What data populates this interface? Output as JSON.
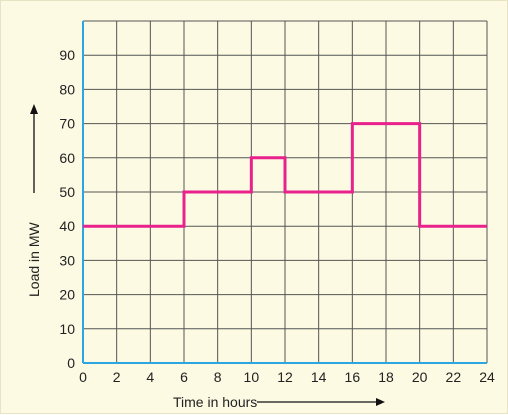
{
  "chart_data": {
    "type": "line",
    "step": true,
    "xlabel": "Time in hours",
    "ylabel": "Load in MW",
    "xlim": [
      0,
      24
    ],
    "ylim": [
      0,
      100
    ],
    "x_ticks": [
      0,
      2,
      4,
      6,
      8,
      10,
      12,
      14,
      16,
      18,
      20,
      22,
      24
    ],
    "y_ticks": [
      0,
      10,
      20,
      30,
      40,
      50,
      60,
      70,
      80,
      90
    ],
    "grid": true,
    "series": [
      {
        "x": [
          0,
          6,
          6,
          10,
          10,
          12,
          12,
          16,
          16,
          20,
          20,
          24
        ],
        "y": [
          40,
          40,
          50,
          50,
          60,
          60,
          50,
          50,
          70,
          70,
          40,
          40
        ]
      }
    ],
    "colors": {
      "line": "#e8218c",
      "axis": "#2aa6e0",
      "grid": "#555555",
      "background": "#fcfae3"
    }
  }
}
